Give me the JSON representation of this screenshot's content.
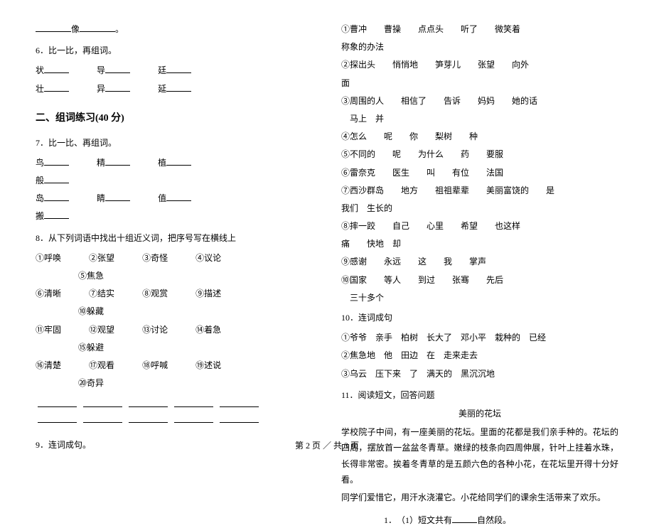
{
  "leftCol": {
    "line5_suffix": "像",
    "q6": {
      "num": "6．比一比，再组词。",
      "row1": [
        "状",
        "导",
        "廷"
      ],
      "row2": [
        "壮",
        "异",
        "延"
      ]
    },
    "section2": "二、组词练习(40 分)",
    "q7": {
      "num": "7．比一比、再组词。",
      "row1": [
        "鸟",
        "精",
        "植"
      ],
      "row2": [
        "般"
      ],
      "row3": [
        "岛",
        "睛",
        "值"
      ],
      "row4": [
        "搬"
      ]
    },
    "q8": {
      "num": "8．从下列词语中找出十组近义词，把序号写在横线上",
      "items": [
        "①呼唤",
        "②张望",
        "③奇怪",
        "④议论",
        "⑤焦急",
        "⑥清晰",
        "⑦结实",
        "⑧观赏",
        "⑨描述",
        "⑩躲藏",
        "⑪牢固",
        "⑫观望",
        "⑬讨论",
        "⑭着急",
        "⑮躲避",
        "⑯清楚",
        "⑰观看",
        "⑱呼喊",
        "⑲述说",
        "⑳奇异"
      ]
    },
    "q9": {
      "num": "9．连词成句。"
    }
  },
  "rightCol": {
    "sentences": [
      [
        "①曹冲",
        "曹操",
        "点点头",
        "听了",
        "微笑着",
        "称象的办法"
      ],
      [
        "②探出头",
        "悄悄地",
        "笋芽儿",
        "张望",
        "向外",
        "面"
      ],
      [
        "③周围的人",
        "相信了",
        "告诉",
        "妈妈",
        "她的话",
        "　马上　并"
      ],
      [
        "④怎么",
        "呢",
        "你",
        "梨树",
        "种"
      ],
      [
        "⑤不同的",
        "呢",
        "为什么",
        "药",
        "要服"
      ],
      [
        "⑥雷奈克",
        "医生",
        "叫",
        "有位",
        "法国"
      ],
      [
        "⑦西沙群岛",
        "地方",
        "祖祖辈辈",
        "美丽富饶的",
        "是",
        "我们　生长的"
      ],
      [
        "⑧摔一跤",
        "自己",
        "心里",
        "希望",
        "也这样",
        "痛",
        "快地　却"
      ],
      [
        "⑨感谢",
        "永远",
        "这",
        "我",
        "掌声"
      ],
      [
        "⑩国家",
        "等人",
        "到过",
        "张骞",
        "先后",
        "　三十多个"
      ]
    ],
    "q10": {
      "num": "10．连词成句",
      "items": [
        "①爷爷　亲手　柏树　长大了　邓小平　栽种的　已经",
        "②焦急地　他　田边　在　走来走去",
        "③乌云　压下来　了　满天的　黑沉沉地"
      ]
    },
    "q11": {
      "num": "11．阅读短文，回答问题",
      "title": "美丽的花坛",
      "para1": "学校院子中间，有一座美丽的花坛。里面的花都是我们亲手种的。花坛的四周，摆放首一盆盆冬青草。嫩绿的枝条向四周伸展，针叶上挂着水珠，长得非常密。挨着冬青草的是五颜六色的各种小花，在花坛里开得十分好看。",
      "para2": "同学们爱惜它，用汗水浇灌它。小花给同学们的课余生活带来了欢乐。",
      "sub1_prefix": "1．　（1）短文共有",
      "sub1_suffix": "自然段。"
    }
  },
  "pager": "第 2 页 ／ 共 3 页"
}
